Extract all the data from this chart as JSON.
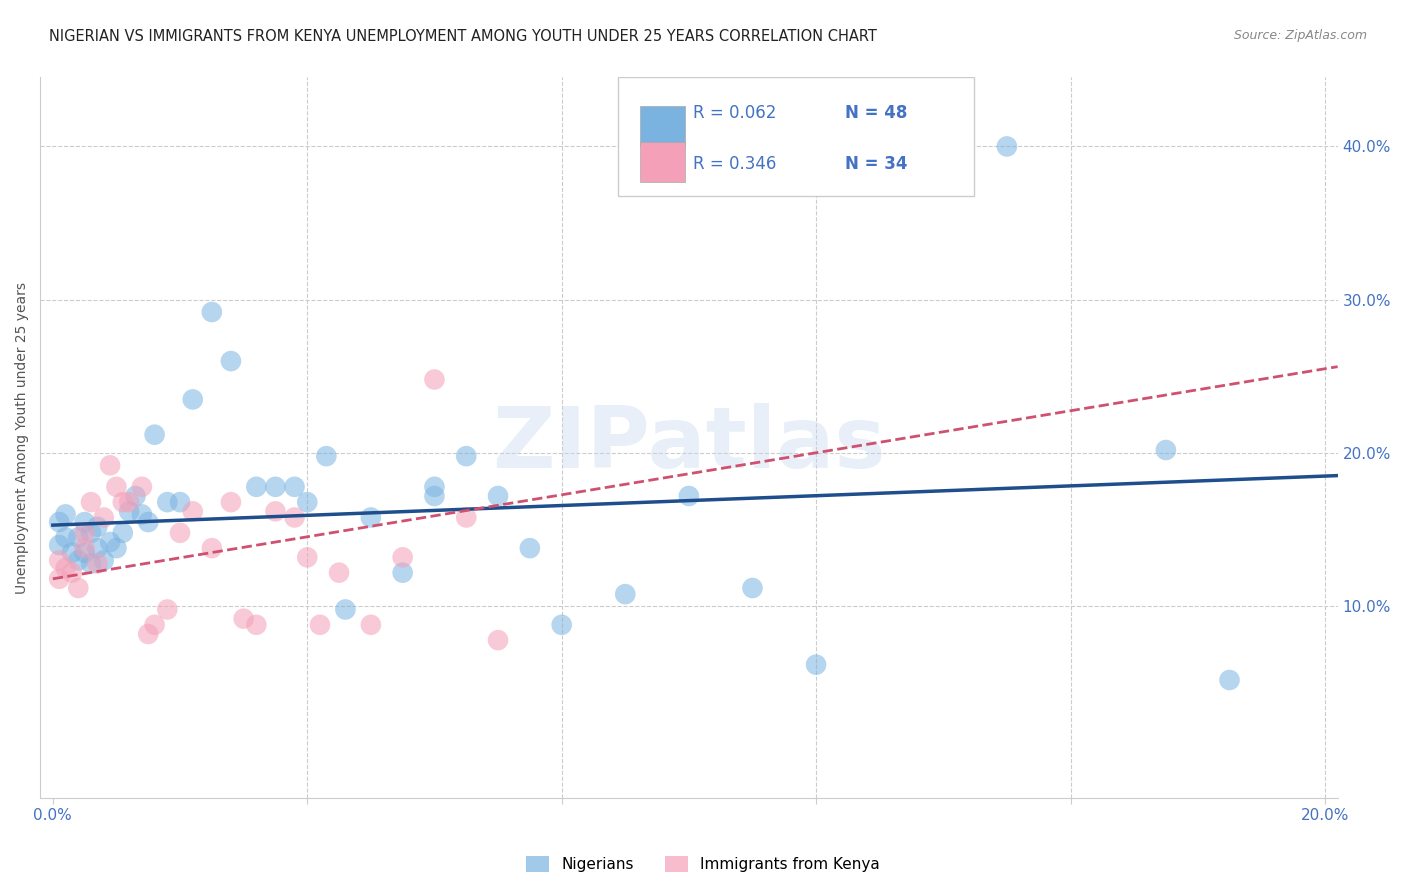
{
  "title": "NIGERIAN VS IMMIGRANTS FROM KENYA UNEMPLOYMENT AMONG YOUTH UNDER 25 YEARS CORRELATION CHART",
  "source": "Source: ZipAtlas.com",
  "ylabel": "Unemployment Among Youth under 25 years",
  "xlim": [
    -0.002,
    0.202
  ],
  "ylim": [
    -0.025,
    0.445
  ],
  "xtick_vals": [
    0.0,
    0.04,
    0.08,
    0.12,
    0.16,
    0.2
  ],
  "ytick_vals": [
    0.0,
    0.1,
    0.2,
    0.3,
    0.4
  ],
  "watermark_text": "ZIPatlas",
  "R_nig": 0.062,
  "N_nig": 48,
  "R_ken": 0.346,
  "N_ken": 34,
  "nig_x": [
    0.001,
    0.001,
    0.002,
    0.002,
    0.003,
    0.004,
    0.004,
    0.005,
    0.005,
    0.006,
    0.006,
    0.007,
    0.007,
    0.008,
    0.009,
    0.01,
    0.011,
    0.012,
    0.013,
    0.014,
    0.015,
    0.016,
    0.018,
    0.02,
    0.022,
    0.025,
    0.028,
    0.032,
    0.035,
    0.038,
    0.04,
    0.043,
    0.046,
    0.05,
    0.055,
    0.06,
    0.065,
    0.07,
    0.075,
    0.08,
    0.09,
    0.1,
    0.11,
    0.12,
    0.15,
    0.175,
    0.185,
    0.06
  ],
  "nig_y": [
    0.14,
    0.155,
    0.145,
    0.16,
    0.135,
    0.13,
    0.145,
    0.135,
    0.155,
    0.148,
    0.128,
    0.138,
    0.152,
    0.13,
    0.142,
    0.138,
    0.148,
    0.162,
    0.172,
    0.16,
    0.155,
    0.212,
    0.168,
    0.168,
    0.235,
    0.292,
    0.26,
    0.178,
    0.178,
    0.178,
    0.168,
    0.198,
    0.098,
    0.158,
    0.122,
    0.178,
    0.198,
    0.172,
    0.138,
    0.088,
    0.108,
    0.172,
    0.112,
    0.062,
    0.4,
    0.202,
    0.052,
    0.172
  ],
  "ken_x": [
    0.001,
    0.001,
    0.002,
    0.003,
    0.004,
    0.005,
    0.005,
    0.006,
    0.007,
    0.008,
    0.009,
    0.01,
    0.011,
    0.012,
    0.014,
    0.015,
    0.016,
    0.018,
    0.02,
    0.022,
    0.025,
    0.028,
    0.03,
    0.032,
    0.035,
    0.038,
    0.04,
    0.042,
    0.045,
    0.05,
    0.055,
    0.06,
    0.065,
    0.07
  ],
  "ken_y": [
    0.118,
    0.13,
    0.125,
    0.122,
    0.112,
    0.148,
    0.138,
    0.168,
    0.128,
    0.158,
    0.192,
    0.178,
    0.168,
    0.168,
    0.178,
    0.082,
    0.088,
    0.098,
    0.148,
    0.162,
    0.138,
    0.168,
    0.092,
    0.088,
    0.162,
    0.158,
    0.132,
    0.088,
    0.122,
    0.088,
    0.132,
    0.248,
    0.158,
    0.078
  ],
  "blue_scatter_color": "#7ab3e0",
  "pink_scatter_color": "#f4a0b8",
  "blue_line_color": "#1f4e8c",
  "pink_line_color": "#d05070",
  "grid_color": "#cccccc",
  "bg_color": "#ffffff",
  "title_color": "#222222",
  "ylabel_color": "#555555",
  "tick_color": "#4472c4",
  "source_color": "#888888",
  "legend_r_color": "#4472c4",
  "legend_n_color": "#4472c4"
}
